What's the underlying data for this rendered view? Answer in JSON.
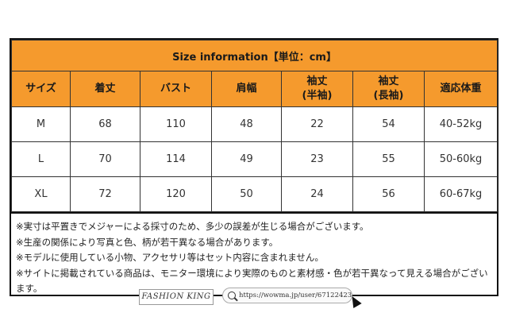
{
  "title": "Size information【単位：cm】",
  "headers": [
    [
      "サイズ"
    ],
    [
      "着丈"
    ],
    [
      "バスト"
    ],
    [
      "肩幅"
    ],
    [
      "袖丈",
      "(半袖)"
    ],
    [
      "袖丈",
      "(長袖)"
    ],
    [
      "適応体重"
    ]
  ],
  "rows": [
    [
      "M",
      "68",
      "110",
      "48",
      "22",
      "54",
      "40-52kg"
    ],
    [
      "L",
      "70",
      "114",
      "49",
      "23",
      "55",
      "50-60kg"
    ],
    [
      "XL",
      "72",
      "120",
      "50",
      "24",
      "56",
      "60-67kg"
    ]
  ],
  "notes": [
    "※実寸は平置きでメジャーによる採寸のため、多少の誤差が生じる場合がございます。",
    "※生産の関係により写真と色、柄が若干異なる場合があります。",
    "※モデルに使用している小物、アクセサリ等はセット内容に含まれません。",
    "※サイトに掲載されている商品は、モニター環境により実際のものと素材感・色が若干異なって見える場合がござい",
    "ます。"
  ],
  "watermark": "FASHION KING",
  "url": "https://wowma.jp/user/67122423",
  "colors": {
    "header_bg": "#f59a2d",
    "border": "#111111"
  }
}
